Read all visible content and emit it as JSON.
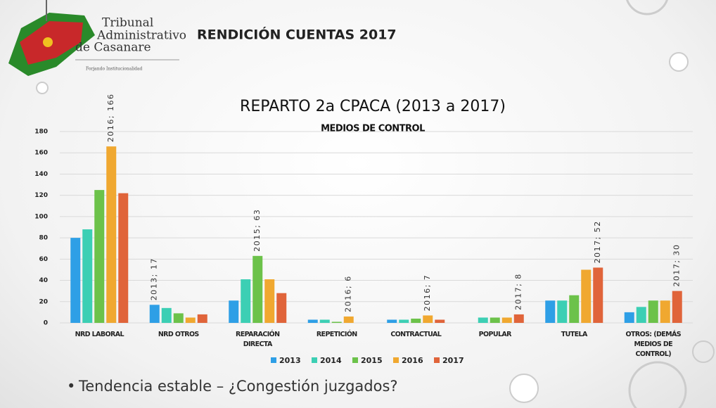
{
  "header": {
    "logo_line1": "Tribunal",
    "logo_line2": "Administrativo",
    "logo_line3": "de Casanare",
    "logo_tagline": "Forjando Institucionalidad",
    "slide_title": "RENDICIÓN CUENTAS 2017"
  },
  "bullets": [
    "Tendencia estable – ¿Congestión juzgados?"
  ],
  "chart_data": {
    "type": "bar",
    "title": "REPARTO 2a CPACA (2013 a 2017)",
    "subtitle": "MEDIOS DE CONTROL",
    "categories": [
      "NRD LABORAL",
      "NRD OTROS",
      "REPARACIÓN DIRECTA",
      "REPETICIÓN",
      "CONTRACTUAL",
      "POPULAR",
      "TUTELA",
      "OTROS: (DEMÁS MEDIOS DE CONTROL)"
    ],
    "series": [
      {
        "name": "2013",
        "color": "#2e9fe6",
        "values": [
          80,
          17,
          21,
          3,
          3,
          0,
          21,
          10
        ],
        "value_labels": [
          null,
          "2013; 17",
          null,
          null,
          null,
          null,
          null,
          null
        ]
      },
      {
        "name": "2014",
        "color": "#3ccfb4",
        "values": [
          88,
          14,
          41,
          3,
          3,
          5,
          21,
          15
        ],
        "value_labels": [
          null,
          null,
          null,
          null,
          null,
          null,
          null,
          null
        ]
      },
      {
        "name": "2015",
        "color": "#6cc24a",
        "values": [
          125,
          9,
          63,
          1,
          4,
          5,
          26,
          21
        ],
        "value_labels": [
          null,
          null,
          "2015; 63",
          null,
          null,
          null,
          null,
          null
        ]
      },
      {
        "name": "2016",
        "color": "#f0a830",
        "values": [
          166,
          5,
          41,
          6,
          7,
          5,
          50,
          21
        ],
        "value_labels": [
          "2016; 166",
          null,
          null,
          "2016; 6",
          "2016; 7",
          null,
          null,
          null
        ]
      },
      {
        "name": "2017",
        "color": "#e0643a",
        "values": [
          122,
          8,
          28,
          0,
          3,
          8,
          52,
          30
        ],
        "value_labels": [
          null,
          null,
          null,
          null,
          null,
          "2017; 8",
          "2017; 52",
          "2017; 30"
        ]
      }
    ],
    "ylim": [
      0,
      180
    ],
    "yticks": [
      0,
      20,
      40,
      60,
      80,
      100,
      120,
      140,
      160,
      180
    ],
    "grid": true
  }
}
